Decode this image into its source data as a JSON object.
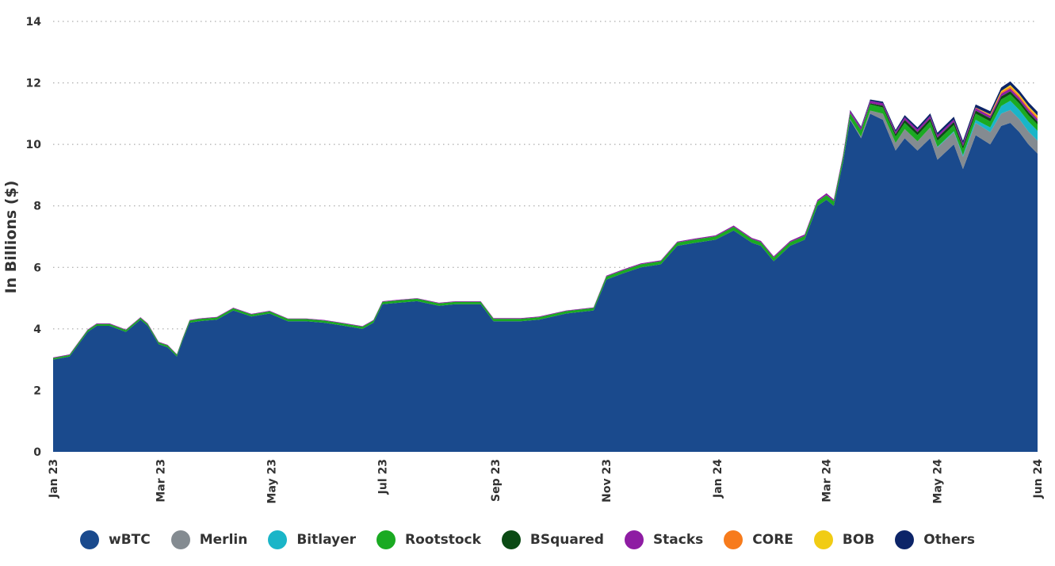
{
  "chart_data": {
    "type": "area",
    "stacked": true,
    "ylabel": "In Billions ($)",
    "ylim": [
      0,
      14
    ],
    "yticks": [
      0,
      2,
      4,
      6,
      8,
      10,
      12,
      14
    ],
    "grid": true,
    "legend_position": "bottom-center",
    "x_tick_labels": [
      "Jan 23",
      "Mar 23",
      "May 23",
      "Jul 23",
      "Sep 23",
      "Nov 23",
      "Jan 24",
      "Mar 24",
      "May 24",
      "Jun 24"
    ],
    "x_tick_dates": [
      "2023-01-01",
      "2023-03-01",
      "2023-05-01",
      "2023-07-01",
      "2023-09-01",
      "2023-11-01",
      "2024-01-01",
      "2024-03-01",
      "2024-05-01",
      "2024-06-25"
    ],
    "x": [
      "2023-01-01",
      "2023-01-10",
      "2023-01-20",
      "2023-01-25",
      "2023-02-01",
      "2023-02-10",
      "2023-02-18",
      "2023-02-22",
      "2023-02-28",
      "2023-03-05",
      "2023-03-10",
      "2023-03-13",
      "2023-03-17",
      "2023-03-22",
      "2023-04-01",
      "2023-04-10",
      "2023-04-20",
      "2023-04-30",
      "2023-05-10",
      "2023-05-20",
      "2023-05-30",
      "2023-06-10",
      "2023-06-20",
      "2023-06-26",
      "2023-07-01",
      "2023-07-10",
      "2023-07-20",
      "2023-08-01",
      "2023-08-10",
      "2023-08-20",
      "2023-08-24",
      "2023-08-31",
      "2023-09-15",
      "2023-09-25",
      "2023-10-10",
      "2023-10-25",
      "2023-11-01",
      "2023-11-10",
      "2023-11-20",
      "2023-12-01",
      "2023-12-10",
      "2023-12-20",
      "2023-12-31",
      "2024-01-10",
      "2024-01-20",
      "2024-01-25",
      "2024-02-01",
      "2024-02-10",
      "2024-02-18",
      "2024-02-25",
      "2024-03-01",
      "2024-03-05",
      "2024-03-10",
      "2024-03-14",
      "2024-03-20",
      "2024-03-25",
      "2024-04-01",
      "2024-04-08",
      "2024-04-13",
      "2024-04-20",
      "2024-04-27",
      "2024-05-01",
      "2024-05-10",
      "2024-05-15",
      "2024-05-22",
      "2024-05-30",
      "2024-06-05",
      "2024-06-10",
      "2024-06-15",
      "2024-06-20",
      "2024-06-25"
    ],
    "series": [
      {
        "name": "wBTC",
        "color": "#1a4a8d",
        "values": [
          3.0,
          3.1,
          3.9,
          4.1,
          4.1,
          3.9,
          4.3,
          4.1,
          3.5,
          3.4,
          3.1,
          3.6,
          4.2,
          4.25,
          4.3,
          4.6,
          4.4,
          4.5,
          4.25,
          4.25,
          4.2,
          4.1,
          4.0,
          4.2,
          4.8,
          4.85,
          4.9,
          4.75,
          4.8,
          4.8,
          4.8,
          4.25,
          4.25,
          4.3,
          4.5,
          4.6,
          5.6,
          5.8,
          6.0,
          6.1,
          6.7,
          6.8,
          6.9,
          7.2,
          6.8,
          6.7,
          6.2,
          6.7,
          6.9,
          8.0,
          8.2,
          8.0,
          9.4,
          10.8,
          10.2,
          11.0,
          10.8,
          9.8,
          10.2,
          9.8,
          10.2,
          9.5,
          10.0,
          9.2,
          10.3,
          10.0,
          10.6,
          10.7,
          10.4,
          10.0,
          9.7
        ]
      },
      {
        "name": "Merlin",
        "color": "#848b91",
        "values": [
          0,
          0,
          0,
          0,
          0,
          0,
          0,
          0,
          0,
          0,
          0,
          0,
          0,
          0,
          0,
          0,
          0,
          0,
          0,
          0,
          0,
          0,
          0,
          0,
          0,
          0,
          0,
          0,
          0,
          0,
          0,
          0,
          0,
          0,
          0,
          0,
          0,
          0,
          0,
          0,
          0,
          0,
          0,
          0,
          0,
          0,
          0,
          0,
          0,
          0,
          0,
          0,
          0,
          0.02,
          0.05,
          0.1,
          0.2,
          0.25,
          0.3,
          0.3,
          0.35,
          0.4,
          0.4,
          0.4,
          0.4,
          0.4,
          0.4,
          0.42,
          0.42,
          0.42,
          0.42
        ]
      },
      {
        "name": "Bitlayer",
        "color": "#1ab5c8",
        "values": [
          0,
          0,
          0,
          0,
          0,
          0,
          0,
          0,
          0,
          0,
          0,
          0,
          0,
          0,
          0,
          0,
          0,
          0,
          0,
          0,
          0,
          0,
          0,
          0,
          0,
          0,
          0,
          0,
          0,
          0,
          0,
          0,
          0,
          0,
          0,
          0,
          0,
          0,
          0,
          0,
          0,
          0,
          0,
          0,
          0,
          0,
          0,
          0,
          0,
          0,
          0,
          0,
          0,
          0,
          0,
          0,
          0,
          0,
          0,
          0,
          0,
          0.02,
          0.03,
          0.05,
          0.1,
          0.15,
          0.25,
          0.3,
          0.3,
          0.32,
          0.32
        ]
      },
      {
        "name": "Rootstock",
        "color": "#1aaa22",
        "values": [
          0.05,
          0.05,
          0.06,
          0.06,
          0.06,
          0.06,
          0.06,
          0.06,
          0.06,
          0.06,
          0.06,
          0.06,
          0.07,
          0.07,
          0.07,
          0.07,
          0.07,
          0.07,
          0.07,
          0.07,
          0.07,
          0.07,
          0.07,
          0.07,
          0.08,
          0.08,
          0.08,
          0.08,
          0.08,
          0.08,
          0.08,
          0.08,
          0.08,
          0.08,
          0.08,
          0.08,
          0.1,
          0.1,
          0.1,
          0.1,
          0.11,
          0.11,
          0.11,
          0.12,
          0.12,
          0.12,
          0.12,
          0.12,
          0.12,
          0.14,
          0.15,
          0.15,
          0.17,
          0.2,
          0.2,
          0.2,
          0.2,
          0.2,
          0.2,
          0.2,
          0.2,
          0.2,
          0.2,
          0.2,
          0.2,
          0.2,
          0.21,
          0.21,
          0.21,
          0.21,
          0.2
        ]
      },
      {
        "name": "BSquared",
        "color": "#0b4a14",
        "values": [
          0,
          0,
          0,
          0,
          0,
          0,
          0,
          0,
          0,
          0,
          0,
          0,
          0,
          0,
          0,
          0,
          0,
          0,
          0,
          0,
          0,
          0,
          0,
          0,
          0,
          0,
          0,
          0,
          0,
          0,
          0,
          0,
          0,
          0,
          0,
          0,
          0,
          0,
          0,
          0,
          0,
          0,
          0,
          0,
          0,
          0,
          0,
          0,
          0,
          0,
          0,
          0,
          0,
          0,
          0.02,
          0.04,
          0.06,
          0.08,
          0.1,
          0.1,
          0.1,
          0.1,
          0.1,
          0.1,
          0.1,
          0.1,
          0.1,
          0.1,
          0.1,
          0.1,
          0.1
        ]
      },
      {
        "name": "Stacks",
        "color": "#8e1ca3",
        "values": [
          0.02,
          0.02,
          0.02,
          0.02,
          0.02,
          0.02,
          0.02,
          0.02,
          0.02,
          0.02,
          0.02,
          0.02,
          0.02,
          0.02,
          0.02,
          0.02,
          0.02,
          0.02,
          0.02,
          0.02,
          0.02,
          0.02,
          0.02,
          0.02,
          0.02,
          0.02,
          0.02,
          0.02,
          0.02,
          0.02,
          0.02,
          0.02,
          0.02,
          0.02,
          0.02,
          0.02,
          0.03,
          0.03,
          0.03,
          0.03,
          0.03,
          0.03,
          0.03,
          0.04,
          0.04,
          0.04,
          0.04,
          0.04,
          0.05,
          0.05,
          0.06,
          0.06,
          0.07,
          0.08,
          0.08,
          0.08,
          0.08,
          0.08,
          0.08,
          0.08,
          0.08,
          0.08,
          0.08,
          0.08,
          0.08,
          0.08,
          0.09,
          0.09,
          0.09,
          0.09,
          0.09
        ]
      },
      {
        "name": "CORE",
        "color": "#f77b1c",
        "values": [
          0,
          0,
          0,
          0,
          0,
          0,
          0,
          0,
          0,
          0,
          0,
          0,
          0,
          0,
          0,
          0,
          0,
          0,
          0,
          0,
          0,
          0,
          0,
          0,
          0,
          0,
          0,
          0,
          0,
          0,
          0,
          0,
          0,
          0,
          0,
          0,
          0,
          0,
          0,
          0,
          0,
          0,
          0,
          0,
          0,
          0,
          0,
          0,
          0,
          0,
          0,
          0,
          0,
          0,
          0,
          0,
          0,
          0,
          0,
          0,
          0,
          0,
          0,
          0,
          0.02,
          0.03,
          0.05,
          0.06,
          0.06,
          0.06,
          0.06
        ]
      },
      {
        "name": "BOB",
        "color": "#f1cc14",
        "values": [
          0,
          0,
          0,
          0,
          0,
          0,
          0,
          0,
          0,
          0,
          0,
          0,
          0,
          0,
          0,
          0,
          0,
          0,
          0,
          0,
          0,
          0,
          0,
          0,
          0,
          0,
          0,
          0,
          0,
          0,
          0,
          0,
          0,
          0,
          0,
          0,
          0,
          0,
          0,
          0,
          0,
          0,
          0,
          0,
          0,
          0,
          0,
          0,
          0,
          0,
          0,
          0,
          0,
          0,
          0,
          0,
          0,
          0,
          0,
          0,
          0,
          0,
          0,
          0,
          0,
          0.02,
          0.04,
          0.05,
          0.05,
          0.05,
          0.05
        ]
      },
      {
        "name": "Others",
        "color": "#0c2468",
        "values": [
          0,
          0,
          0,
          0,
          0,
          0,
          0,
          0,
          0,
          0,
          0,
          0,
          0,
          0,
          0,
          0,
          0,
          0,
          0,
          0,
          0,
          0,
          0,
          0,
          0,
          0,
          0,
          0,
          0,
          0,
          0,
          0,
          0,
          0,
          0,
          0,
          0,
          0,
          0,
          0,
          0,
          0,
          0,
          0,
          0,
          0,
          0,
          0,
          0,
          0,
          0,
          0,
          0,
          0.02,
          0.03,
          0.04,
          0.05,
          0.06,
          0.07,
          0.07,
          0.08,
          0.08,
          0.09,
          0.09,
          0.1,
          0.1,
          0.11,
          0.12,
          0.12,
          0.12,
          0.12
        ]
      }
    ]
  }
}
